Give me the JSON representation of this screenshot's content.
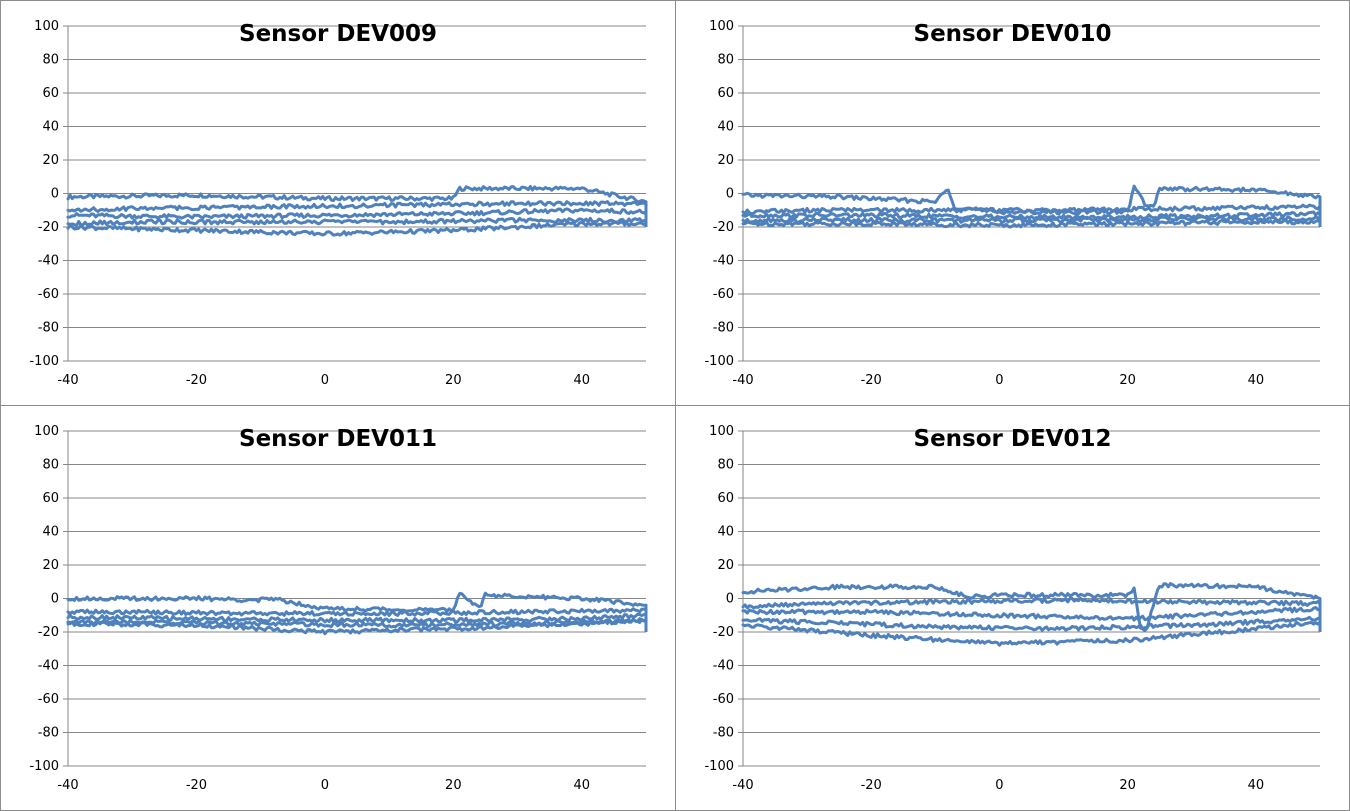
{
  "chart_data": [
    {
      "type": "line",
      "title": "Sensor DEV009",
      "xlim": [
        -40,
        50
      ],
      "ylim": [
        -100,
        100
      ],
      "x_ticks": [
        -40,
        -20,
        0,
        20,
        40
      ],
      "y_ticks": [
        100,
        80,
        60,
        40,
        20,
        0,
        -20,
        -40,
        -60,
        -80,
        -100
      ],
      "grid": true,
      "line_color": "#4F81BD",
      "series": [
        {
          "x": [
            -40,
            -20,
            0,
            20,
            21,
            40,
            50
          ],
          "y": [
            -2,
            -1,
            -3,
            -3,
            3,
            3,
            -5
          ]
        },
        {
          "x": [
            50,
            30,
            10,
            -10,
            -30,
            -40
          ],
          "y": [
            -6,
            -6,
            -7,
            -8,
            -9,
            -10
          ]
        },
        {
          "x": [
            -40,
            -20,
            0,
            20,
            40,
            50
          ],
          "y": [
            -13,
            -14,
            -13,
            -12,
            -10,
            -11
          ]
        },
        {
          "x": [
            50,
            30,
            10,
            -10,
            -30,
            -40
          ],
          "y": [
            -16,
            -16,
            -17,
            -17,
            -17,
            -18
          ]
        },
        {
          "x": [
            -40,
            -20,
            0,
            20,
            40,
            50
          ],
          "y": [
            -20,
            -22,
            -24,
            -22,
            -18,
            -18
          ]
        }
      ]
    },
    {
      "type": "line",
      "title": "Sensor DEV010",
      "xlim": [
        -40,
        50
      ],
      "ylim": [
        -100,
        100
      ],
      "x_ticks": [
        -40,
        -20,
        0,
        20,
        40
      ],
      "y_ticks": [
        100,
        80,
        60,
        40,
        20,
        0,
        -20,
        -40,
        -60,
        -80,
        -100
      ],
      "grid": true,
      "line_color": "#4F81BD",
      "series": [
        {
          "x": [
            -40,
            -25,
            -10,
            -8,
            -7,
            0,
            20,
            21,
            23,
            24,
            25,
            40,
            50
          ],
          "y": [
            -1,
            -2,
            -5,
            3,
            -8,
            -11,
            -11,
            4,
            -8,
            -8,
            3,
            2,
            -2
          ]
        },
        {
          "x": [
            50,
            30,
            10,
            -10,
            -30,
            -40
          ],
          "y": [
            -8,
            -9,
            -10,
            -10,
            -10,
            -11
          ]
        },
        {
          "x": [
            -40,
            -20,
            0,
            20,
            40,
            50
          ],
          "y": [
            -13,
            -13,
            -14,
            -14,
            -13,
            -12
          ]
        },
        {
          "x": [
            50,
            30,
            10,
            -10,
            -30,
            -40
          ],
          "y": [
            -15,
            -15,
            -16,
            -16,
            -16,
            -16
          ]
        },
        {
          "x": [
            -40,
            -20,
            0,
            20,
            40,
            50
          ],
          "y": [
            -18,
            -18,
            -19,
            -18,
            -17,
            -17
          ]
        }
      ]
    },
    {
      "type": "line",
      "title": "Sensor DEV011",
      "xlim": [
        -40,
        50
      ],
      "ylim": [
        -100,
        100
      ],
      "x_ticks": [
        -40,
        -20,
        0,
        20,
        40
      ],
      "y_ticks": [
        100,
        80,
        60,
        40,
        20,
        0,
        -20,
        -40,
        -60,
        -80,
        -100
      ],
      "grid": true,
      "line_color": "#4F81BD",
      "series": [
        {
          "x": [
            -40,
            -20,
            -10,
            -8,
            0,
            20,
            21,
            24,
            25,
            40,
            50
          ],
          "y": [
            0,
            0,
            -1,
            0,
            -6,
            -7,
            4,
            -6,
            2,
            0,
            -4
          ]
        },
        {
          "x": [
            50,
            30,
            10,
            -10,
            -30,
            -40
          ],
          "y": [
            -7,
            -8,
            -9,
            -9,
            -8,
            -8
          ]
        },
        {
          "x": [
            -40,
            -20,
            0,
            20,
            40,
            50
          ],
          "y": [
            -11,
            -12,
            -13,
            -13,
            -12,
            -10
          ]
        },
        {
          "x": [
            50,
            30,
            10,
            -10,
            -30,
            -40
          ],
          "y": [
            -13,
            -15,
            -16,
            -15,
            -14,
            -14
          ]
        },
        {
          "x": [
            -40,
            -20,
            0,
            20,
            40,
            50
          ],
          "y": [
            -15,
            -16,
            -20,
            -18,
            -15,
            -13
          ]
        }
      ]
    },
    {
      "type": "line",
      "title": "Sensor DEV012",
      "xlim": [
        -40,
        50
      ],
      "ylim": [
        -100,
        100
      ],
      "x_ticks": [
        -40,
        -20,
        0,
        20,
        40
      ],
      "y_ticks": [
        100,
        80,
        60,
        40,
        20,
        0,
        -20,
        -40,
        -60,
        -80,
        -100
      ],
      "grid": true,
      "line_color": "#4F81BD",
      "series": [
        {
          "x": [
            -40,
            -25,
            -10,
            -5,
            0,
            20,
            21,
            22,
            23,
            24,
            25,
            40,
            50
          ],
          "y": [
            4,
            7,
            7,
            1,
            2,
            2,
            6,
            -18,
            -18,
            -4,
            8,
            7,
            0
          ]
        },
        {
          "x": [
            50,
            30,
            10,
            -10,
            -30,
            -40
          ],
          "y": [
            -3,
            -2,
            -1,
            -2,
            -3,
            -5
          ]
        },
        {
          "x": [
            -40,
            -20,
            0,
            20,
            40,
            50
          ],
          "y": [
            -8,
            -8,
            -10,
            -12,
            -8,
            -6
          ]
        },
        {
          "x": [
            50,
            30,
            10,
            -10,
            -30,
            -40
          ],
          "y": [
            -12,
            -16,
            -18,
            -17,
            -14,
            -13
          ]
        },
        {
          "x": [
            -40,
            -20,
            0,
            20,
            40,
            50
          ],
          "y": [
            -16,
            -22,
            -27,
            -25,
            -18,
            -14
          ]
        }
      ]
    }
  ]
}
